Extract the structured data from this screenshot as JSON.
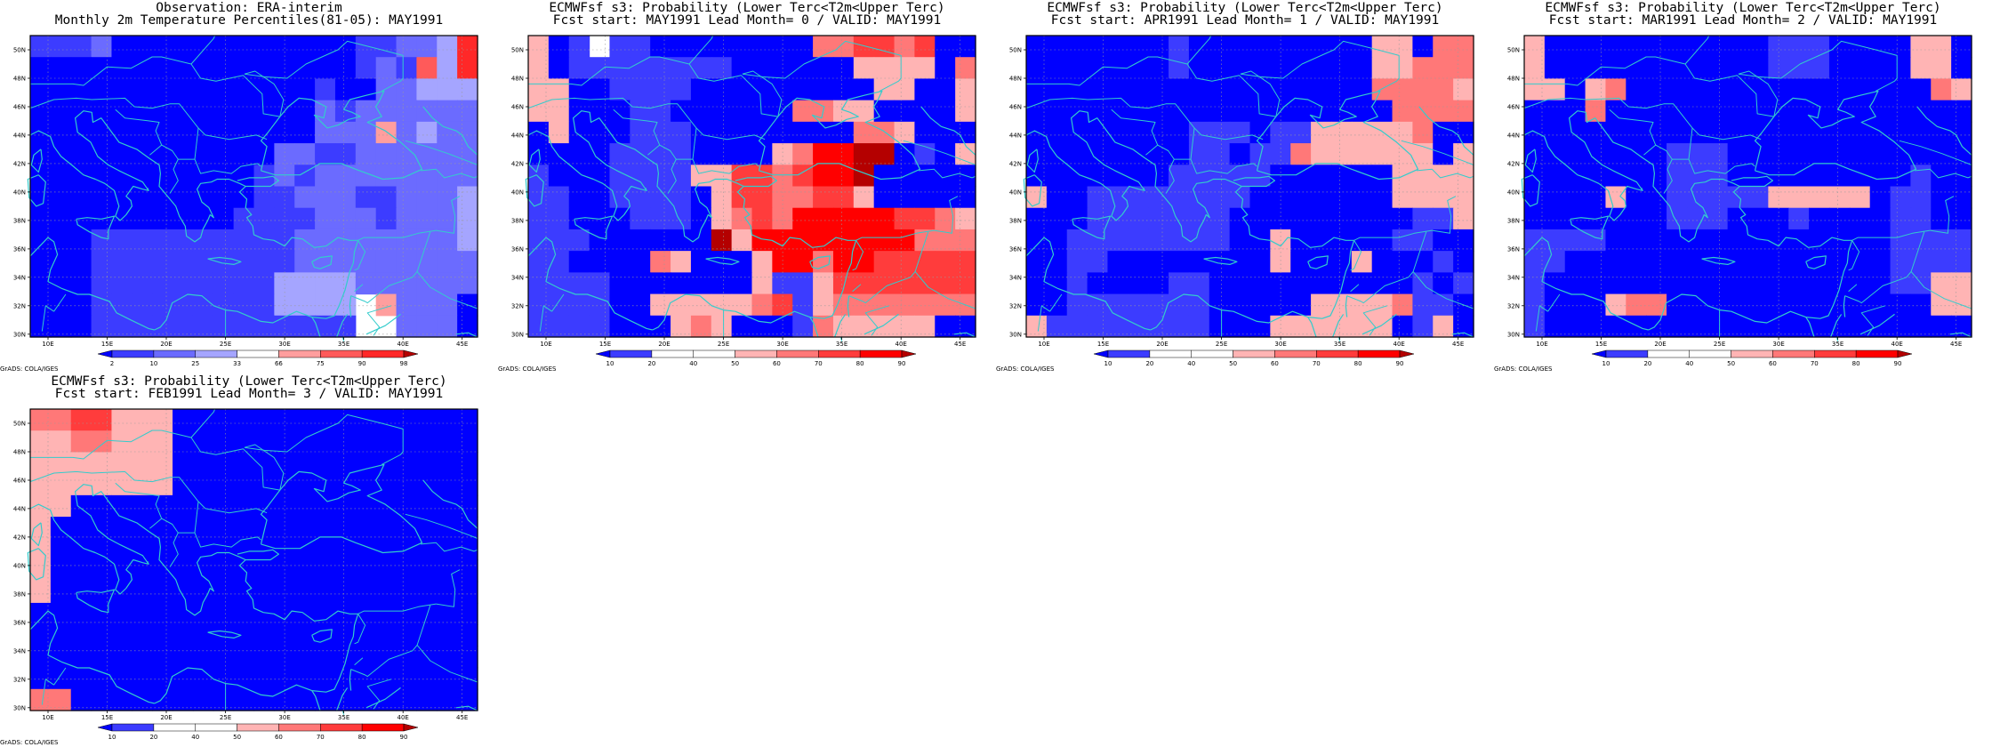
{
  "figure": {
    "grads_label": "GrADS: COLA/IGES"
  },
  "panels": [
    {
      "title_line1": "Observation: ERA-interim",
      "title_line2": "Monthly 2m Temperature Percentiles(81-05): MAY1991",
      "colorbar": {
        "labels": [
          "2",
          "10",
          "25",
          "33",
          "66",
          "75",
          "90",
          "98"
        ],
        "colors": [
          "#0000ff",
          "#3c3cff",
          "#6b6bff",
          "#a5a5ff",
          "#ffffff",
          "#ff9e9e",
          "#ff5a5a",
          "#ff2828",
          "#b40000"
        ]
      },
      "grid_codes": [
        "1112000000000000112237",
        "0000000000000000121637",
        "0000000000000010022333",
        "0000000000000021222222",
        "0000000000000022252322",
        "0000000000002211222222",
        "0000000000012122222222",
        "0000000000011222112223",
        "0000000000111122212223",
        "0001111111111222222223",
        "0001111111111222222222",
        "0001111111113333222222",
        "0001111111113333452220",
        "0001111111111111442220"
      ]
    },
    {
      "title_line1": "ECMWFsf s3: Probability (Lower Terc<T2m<Upper Terc)",
      "title_line2": "Fcst start: MAY1991   Lead Month= 0 / VALID: MAY1991",
      "colorbar": {
        "labels": [
          "10",
          "20",
          "40",
          "50",
          "60",
          "70",
          "80",
          "90"
        ],
        "colors": [
          "#0000ff",
          "#3c3cff",
          "#ffffff",
          "#ffffff",
          "#ffb4b4",
          "#ff7878",
          "#ff3c3c",
          "#ff0000",
          "#b40000"
        ]
      },
      "grid_codes": [
        "4013110000000055665600",
        "4011111111000000444405",
        "4400111100000000044004",
        "4400011000000554400004",
        "0400011100000000554000",
        "0000111100004577880104",
        "1000111144665677800000",
        "1100111104665566400000",
        "1100011104565777776654",
        "1110000008477777777555",
        "1100005400047757766666",
        "1111000000041146666666",
        "1111004444456145555555",
        "1111000454000154444400"
      ]
    },
    {
      "title_line1": "ECMWFsf s3: Probability (Lower Terc<T2m<Upper Terc)",
      "title_line2": "Fcst start: APR1991   Lead Month= 1 / VALID: MAY1991",
      "colorbar": {
        "labels": [
          "10",
          "20",
          "40",
          "50",
          "60",
          "70",
          "80",
          "90"
        ],
        "colors": [
          "#0000ff",
          "#3c3cff",
          "#ffffff",
          "#ffffff",
          "#ffb4b4",
          "#ff7878",
          "#ff3c3c",
          "#ff0000",
          "#b40000"
        ]
      },
      "grid_codes": [
        "0000000100000000044055",
        "0000000100000000044555",
        "0000000000000000055554",
        "0000000000000000005555",
        "0000000011101144444500",
        "0000000011011544444404",
        "0000000111110000004444",
        "4001111111100000004444",
        "0001111111000000000114",
        "0011111111004000001100",
        "0011000000004000400010",
        "0010000110000000000101",
        "0011111110000044445110",
        "4111111110004444440140"
      ]
    },
    {
      "title_line1": "ECMWFsf s3: Probability (Lower Terc<T2m<Upper Terc)",
      "title_line2": "Fcst start: MAR1991   Lead Month= 2 / VALID: MAY1991",
      "colorbar": {
        "labels": [
          "10",
          "20",
          "40",
          "50",
          "60",
          "70",
          "80",
          "90"
        ],
        "colors": [
          "#0000ff",
          "#3c3cff",
          "#ffffff",
          "#ffffff",
          "#ffb4b4",
          "#ff7878",
          "#ff3c3c",
          "#ff0000",
          "#b40000"
        ]
      },
      "grid_codes": [
        "4000000000001110000440",
        "4000000000001110000440",
        "4404500000000000000054",
        "0005000000000000000000",
        "0000000000000000000000",
        "0000000111000000000000",
        "0000000111000000000100",
        "0000400111114444401100",
        "0000000111000100001100",
        "1111000000000000001111",
        "1100000000000000001111",
        "1000000000000000001144",
        "1000455000000000000044",
        "1000000000000000000000"
      ]
    },
    {
      "title_line1": "ECMWFsf s3: Probability (Lower Terc<T2m<Upper Terc)",
      "title_line2": "Fcst start: FEB1991   Lead Month= 3 / VALID: MAY1991",
      "colorbar": {
        "labels": [
          "10",
          "20",
          "40",
          "50",
          "60",
          "70",
          "80",
          "90"
        ],
        "colors": [
          "#0000ff",
          "#3c3cff",
          "#ffffff",
          "#ffffff",
          "#ffb4b4",
          "#ff7878",
          "#ff3c3c",
          "#ff0000",
          "#b40000"
        ]
      },
      "grid_codes": [
        "5566444000000000000000",
        "4455444000000000000000",
        "4444444000000000000000",
        "4444444000000000000000",
        "4400000000000000000000",
        "4000000000000000000000",
        "4000000000000000000000",
        "4000000000000000000000",
        "4000000000000000000000",
        "0000000000000000000000",
        "0000000000000000000000",
        "0000000000000000000000",
        "0000000000000000000000",
        "5500000000000000000000"
      ]
    }
  ],
  "map": {
    "lat_labels": [
      "50N",
      "48N",
      "46N",
      "44N",
      "42N",
      "40N",
      "38N",
      "36N",
      "34N",
      "32N",
      "30N"
    ],
    "lon_labels": [
      "10E",
      "15E",
      "20E",
      "25E",
      "30E",
      "35E",
      "40E",
      "45E"
    ],
    "coast_color": "#33cccc"
  }
}
